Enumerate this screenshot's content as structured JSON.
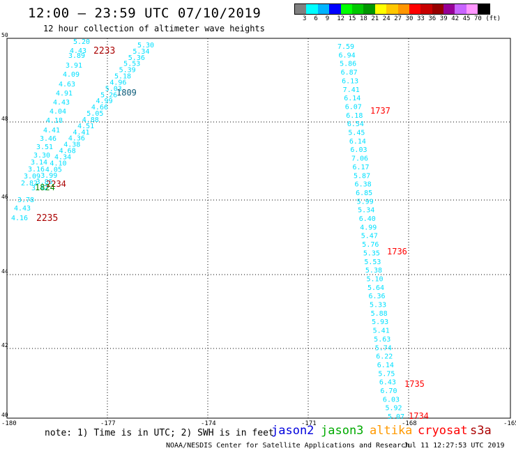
{
  "header": {
    "title": "12:00 – 23:59 UTC 07/10/2019",
    "subtitle": "12 hour collection of altimeter wave heights"
  },
  "colorbar": {
    "colors": [
      "#808080",
      "#00ffff",
      "#00b4ff",
      "#0000ff",
      "#00ff00",
      "#00c800",
      "#009600",
      "#ffff00",
      "#ffc800",
      "#ff9600",
      "#ff0000",
      "#c80000",
      "#960000",
      "#960096",
      "#c864ff",
      "#ff96ff",
      "#000000"
    ],
    "labels": [
      "3",
      "6",
      "9",
      "12",
      "15",
      "18",
      "21",
      "24",
      "27",
      "30",
      "33",
      "36",
      "39",
      "42",
      "45",
      "70",
      "(ft)"
    ]
  },
  "axes": {
    "lat_labels": [
      "50",
      "48",
      "46",
      "44",
      "42",
      "40"
    ],
    "lon_labels": [
      "-180",
      "-177",
      "-174",
      "-171",
      "-168",
      "-165"
    ]
  },
  "colors": {
    "swh": "#00e0ff",
    "time_label": "#ff0000",
    "time_label_dark": "#aa0000",
    "jason3_time": "#008800"
  },
  "tracks": {
    "east_values": [
      "7.59",
      "6.94",
      "5.86",
      "6.87",
      "6.13",
      "7.41",
      "6.14",
      "6.07",
      "6.18",
      "6.54",
      "5.45",
      "6.14",
      "6.03",
      "7.06",
      "6.17",
      "5.87",
      "6.38",
      "6.85",
      "5.99",
      "5.34",
      "6.40",
      "4.99",
      "5.47",
      "5.76",
      "5.35",
      "5.53",
      "5.38",
      "5.10",
      "5.64",
      "6.36",
      "5.33",
      "5.88",
      "5.93",
      "5.41",
      "5.63",
      "5.74",
      "6.22",
      "6.14",
      "5.75",
      "6.43",
      "6.70",
      "6.03",
      "5.92",
      "5.07"
    ],
    "west_values": [
      "5.20",
      "4.43",
      "3.89",
      "3.91",
      "4.09",
      "4.63",
      "4.91",
      "4.43",
      "4.04",
      "4.18",
      "4.41",
      "3.46",
      "3.51",
      "3.30",
      "3.14",
      "3.16",
      "3.09",
      "2.82",
      "3.78",
      "4.43",
      "4.16"
    ],
    "diag_values": [
      "5.30",
      "5.34",
      "5.36",
      "5.53",
      "5.39",
      "5.18",
      "4.96",
      "5.03",
      "5.26",
      "4.99",
      "4.66",
      "5.05",
      "4.88",
      "4.51",
      "4.41",
      "4.36",
      "4.38",
      "4.68",
      "4.34",
      "4.10",
      "4.05",
      "3.99",
      "3.85",
      "3.42"
    ],
    "time_labels": [
      "1737",
      "1736",
      "1735",
      "1734",
      "2233",
      "2235",
      "2234",
      "1809",
      "1824"
    ]
  },
  "footer": {
    "note": "note: 1) Time is in UTC; 2) SWH is in feet",
    "legend": [
      {
        "name": "jason2",
        "color": "#0000dd"
      },
      {
        "name": "jason3",
        "color": "#00aa00"
      },
      {
        "name": "altika",
        "color": "#ff9900"
      },
      {
        "name": "cryosat",
        "color": "#ff0000"
      },
      {
        "name": "s3a",
        "color": "#aa0000"
      }
    ],
    "credit": "NOAA/NESDIS Center for Satellite Applications and Research",
    "timestamp": "Jul 11 12:27:53 UTC 2019"
  }
}
